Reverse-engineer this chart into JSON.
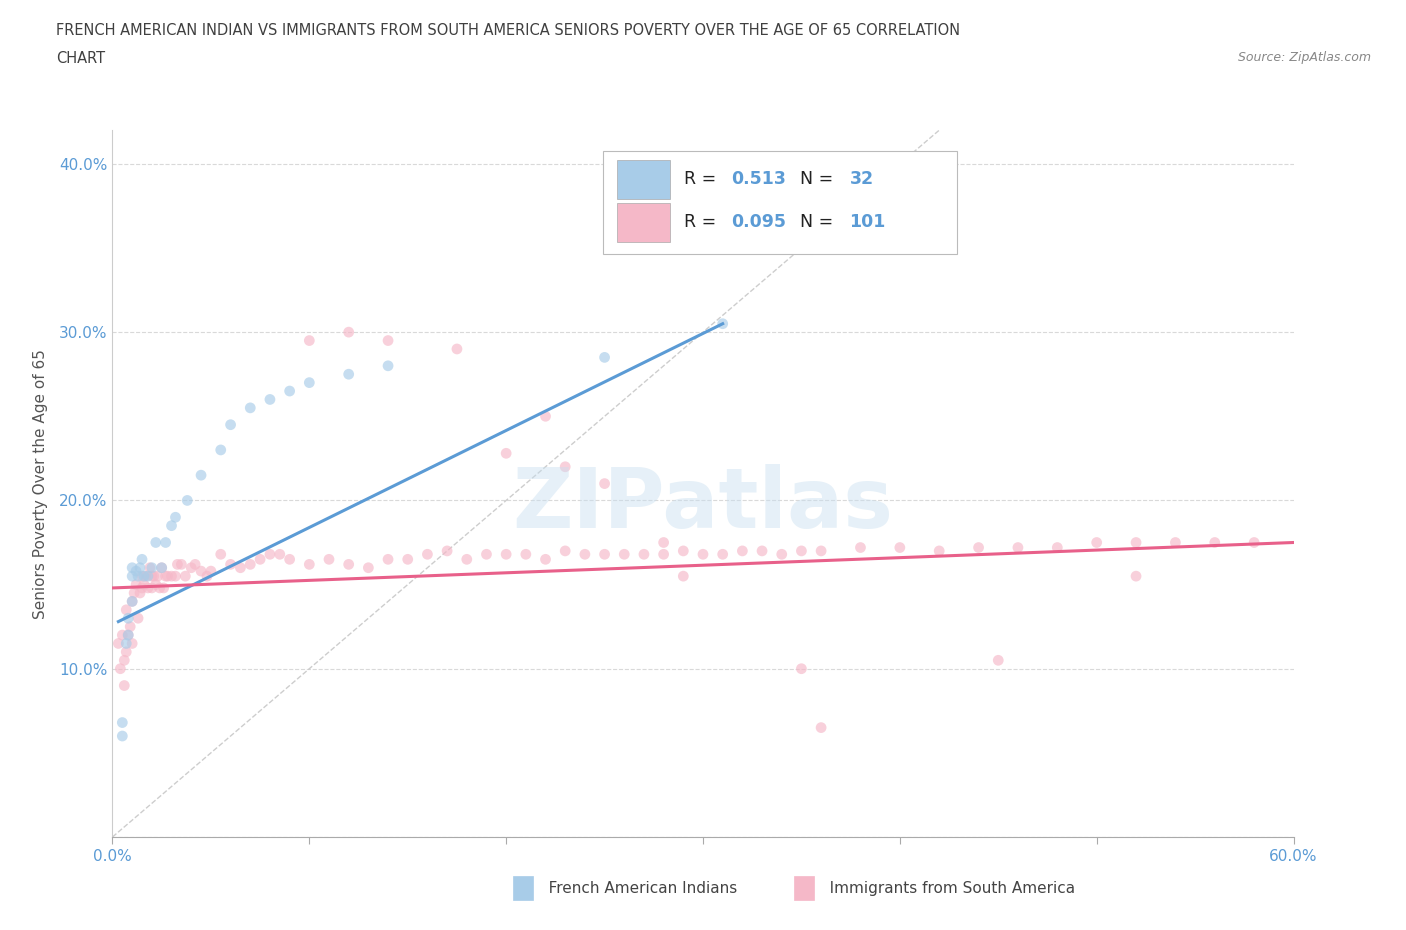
{
  "title_line1": "FRENCH AMERICAN INDIAN VS IMMIGRANTS FROM SOUTH AMERICA SENIORS POVERTY OVER THE AGE OF 65 CORRELATION",
  "title_line2": "CHART",
  "source_text": "Source: ZipAtlas.com",
  "ylabel": "Seniors Poverty Over the Age of 65",
  "xlim": [
    0.0,
    0.6
  ],
  "ylim": [
    0.0,
    0.42
  ],
  "xticks": [
    0.0,
    0.1,
    0.2,
    0.3,
    0.4,
    0.5,
    0.6
  ],
  "yticks": [
    0.0,
    0.1,
    0.2,
    0.3,
    0.4
  ],
  "blue_color": "#a8cce8",
  "pink_color": "#f5b8c8",
  "blue_line_color": "#5b9bd5",
  "pink_line_color": "#e8608a",
  "diag_color": "#c8c8c8",
  "watermark": "ZIPatlas",
  "blue_line_x": [
    0.003,
    0.31
  ],
  "blue_line_y": [
    0.128,
    0.305
  ],
  "pink_line_x": [
    0.0,
    0.6
  ],
  "pink_line_y": [
    0.148,
    0.175
  ],
  "diag_line_x": [
    0.0,
    0.42
  ],
  "diag_line_y": [
    0.0,
    0.42
  ],
  "blue_scatter_x": [
    0.005,
    0.005,
    0.007,
    0.008,
    0.008,
    0.01,
    0.01,
    0.01,
    0.012,
    0.013,
    0.014,
    0.015,
    0.016,
    0.018,
    0.02,
    0.022,
    0.025,
    0.027,
    0.03,
    0.032,
    0.038,
    0.045,
    0.055,
    0.06,
    0.07,
    0.08,
    0.09,
    0.1,
    0.12,
    0.14,
    0.25,
    0.31
  ],
  "blue_scatter_y": [
    0.068,
    0.06,
    0.115,
    0.12,
    0.13,
    0.14,
    0.155,
    0.16,
    0.158,
    0.155,
    0.16,
    0.165,
    0.155,
    0.155,
    0.16,
    0.175,
    0.16,
    0.175,
    0.185,
    0.19,
    0.2,
    0.215,
    0.23,
    0.245,
    0.255,
    0.26,
    0.265,
    0.27,
    0.275,
    0.28,
    0.285,
    0.305
  ],
  "pink_scatter_x": [
    0.003,
    0.004,
    0.005,
    0.006,
    0.006,
    0.007,
    0.007,
    0.008,
    0.009,
    0.01,
    0.01,
    0.011,
    0.012,
    0.013,
    0.014,
    0.015,
    0.015,
    0.016,
    0.017,
    0.018,
    0.019,
    0.02,
    0.02,
    0.021,
    0.022,
    0.023,
    0.024,
    0.025,
    0.026,
    0.027,
    0.028,
    0.03,
    0.032,
    0.033,
    0.035,
    0.037,
    0.04,
    0.042,
    0.045,
    0.048,
    0.05,
    0.055,
    0.06,
    0.065,
    0.07,
    0.075,
    0.08,
    0.085,
    0.09,
    0.1,
    0.11,
    0.12,
    0.13,
    0.14,
    0.15,
    0.16,
    0.17,
    0.18,
    0.19,
    0.2,
    0.21,
    0.22,
    0.23,
    0.24,
    0.25,
    0.26,
    0.27,
    0.28,
    0.29,
    0.3,
    0.31,
    0.32,
    0.33,
    0.34,
    0.35,
    0.36,
    0.38,
    0.4,
    0.42,
    0.44,
    0.46,
    0.48,
    0.5,
    0.52,
    0.54,
    0.56,
    0.58,
    0.1,
    0.12,
    0.14,
    0.175,
    0.2,
    0.23,
    0.25,
    0.28,
    0.35,
    0.45,
    0.52,
    0.22,
    0.29,
    0.36
  ],
  "pink_scatter_y": [
    0.115,
    0.1,
    0.12,
    0.09,
    0.105,
    0.11,
    0.135,
    0.12,
    0.125,
    0.115,
    0.14,
    0.145,
    0.15,
    0.13,
    0.145,
    0.148,
    0.155,
    0.15,
    0.155,
    0.148,
    0.16,
    0.148,
    0.155,
    0.155,
    0.15,
    0.155,
    0.148,
    0.16,
    0.148,
    0.155,
    0.155,
    0.155,
    0.155,
    0.162,
    0.162,
    0.155,
    0.16,
    0.162,
    0.158,
    0.155,
    0.158,
    0.168,
    0.162,
    0.16,
    0.162,
    0.165,
    0.168,
    0.168,
    0.165,
    0.162,
    0.165,
    0.162,
    0.16,
    0.165,
    0.165,
    0.168,
    0.17,
    0.165,
    0.168,
    0.168,
    0.168,
    0.165,
    0.17,
    0.168,
    0.168,
    0.168,
    0.168,
    0.168,
    0.17,
    0.168,
    0.168,
    0.17,
    0.17,
    0.168,
    0.17,
    0.17,
    0.172,
    0.172,
    0.17,
    0.172,
    0.172,
    0.172,
    0.175,
    0.175,
    0.175,
    0.175,
    0.175,
    0.295,
    0.3,
    0.295,
    0.29,
    0.228,
    0.22,
    0.21,
    0.175,
    0.1,
    0.105,
    0.155,
    0.25,
    0.155,
    0.065
  ],
  "background_color": "#ffffff",
  "grid_color": "#d0d0d0",
  "title_color": "#404040",
  "tick_color": "#5b9bd5",
  "marker_size": 60,
  "marker_alpha": 0.65,
  "legend_r1": "0.513",
  "legend_n1": "32",
  "legend_r2": "0.095",
  "legend_n2": "101"
}
